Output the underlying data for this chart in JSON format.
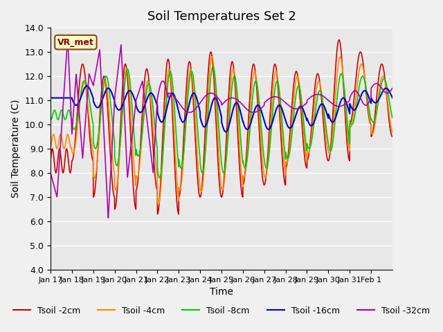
{
  "title": "Soil Temperatures Set 2",
  "xlabel": "Time",
  "ylabel": "Soil Temperature (C)",
  "ylim": [
    4.0,
    14.0
  ],
  "yticks": [
    4.0,
    5.0,
    6.0,
    7.0,
    8.0,
    9.0,
    10.0,
    11.0,
    12.0,
    13.0,
    14.0
  ],
  "xtick_labels": [
    "Jan 17",
    "Jan 18",
    "Jan 19",
    "Jan 20",
    "Jan 21",
    "Jan 22",
    "Jan 23",
    "Jan 24",
    "Jan 25",
    "Jan 26",
    "Jan 27",
    "Jan 28",
    "Jan 29",
    "Jan 30",
    "Jan 31",
    "Feb 1"
  ],
  "colors": {
    "Tsoil -2cm": "#cc0000",
    "Tsoil -4cm": "#ff8800",
    "Tsoil -8cm": "#00cc00",
    "Tsoil -16cm": "#0000cc",
    "Tsoil -32cm": "#aa00aa"
  },
  "legend_labels": [
    "Tsoil -2cm",
    "Tsoil -4cm",
    "Tsoil -8cm",
    "Tsoil -16cm",
    "Tsoil -32cm"
  ],
  "annotation_text": "VR_met",
  "bg_color": "#e8e8e8",
  "grid_color": "#ffffff"
}
